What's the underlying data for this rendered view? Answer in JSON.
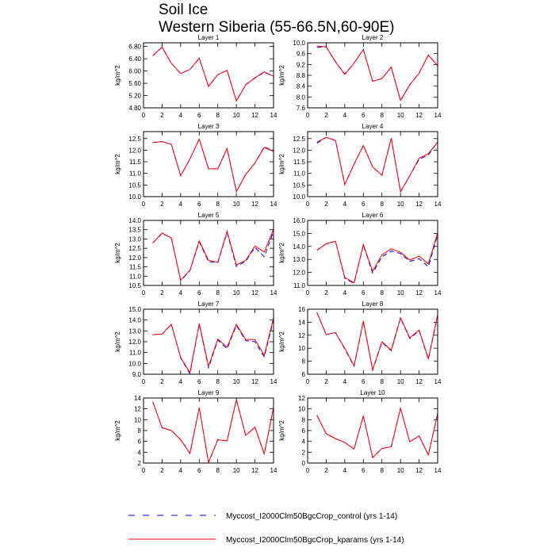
{
  "title": "Soil Ice",
  "subtitle": "Western Siberia (55-66.5N,60-90E)",
  "chart_data": [
    {
      "type": "line",
      "title": "Layer 1",
      "y_label": "kg/m^2",
      "x": [
        1,
        2,
        3,
        4,
        5,
        6,
        7,
        8,
        9,
        10,
        11,
        12,
        13,
        14
      ],
      "xlim": [
        0,
        14
      ],
      "xticks": [
        0,
        2,
        4,
        6,
        8,
        10,
        12,
        14
      ],
      "ylim": [
        4.8,
        6.92
      ],
      "yticks": [
        {
          "value": 4.8,
          "label": "4.80"
        },
        {
          "value": 5.2,
          "label": "5.20"
        },
        {
          "value": 5.6,
          "label": "5.60"
        },
        {
          "value": 6,
          "label": "6.00"
        },
        {
          "value": 6.4,
          "label": "6.40"
        },
        {
          "value": 6.8,
          "label": "6.80"
        }
      ],
      "series": [
        {
          "name": "Myccost_I2000Clm50BgcCrop_control (yrs 1-14)",
          "color": "#0000ff",
          "dashed": true,
          "values": [
            6.5,
            6.77,
            6.25,
            5.92,
            6.05,
            6.41,
            5.5,
            5.88,
            6.02,
            5.03,
            5.55,
            5.77,
            5.96,
            5.83
          ]
        },
        {
          "name": "Myccost_I2000Clm50BgcCrop_kparams (yrs 1-14)",
          "color": "#ff0000",
          "dashed": false,
          "values": [
            6.5,
            6.78,
            6.25,
            5.92,
            6.05,
            6.42,
            5.5,
            5.88,
            6.02,
            5.02,
            5.55,
            5.78,
            5.97,
            5.83
          ]
        }
      ]
    },
    {
      "type": "line",
      "title": "Layer 2",
      "y_label": "kg/m^2",
      "x": [
        1,
        2,
        3,
        4,
        5,
        6,
        7,
        8,
        9,
        10,
        11,
        12,
        13,
        14
      ],
      "xlim": [
        0,
        14
      ],
      "xticks": [
        0,
        2,
        4,
        6,
        8,
        10,
        12,
        14
      ],
      "ylim": [
        7.6,
        10
      ],
      "yticks": [
        7.6,
        {
          "value": 8,
          "label": "8.0"
        },
        8.4,
        8.8,
        9.2,
        9.6,
        {
          "value": 10,
          "label": "10.0"
        }
      ],
      "series": [
        {
          "color": "#0000ff",
          "dashed": true,
          "values": [
            9.83,
            9.85,
            9.3,
            8.85,
            9.25,
            9.75,
            8.58,
            8.68,
            9.1,
            7.87,
            8.45,
            8.88,
            9.55,
            9.15
          ]
        },
        {
          "color": "#ff0000",
          "dashed": false,
          "values": [
            9.88,
            9.85,
            9.3,
            8.83,
            9.25,
            9.75,
            8.58,
            8.68,
            9.1,
            7.87,
            8.45,
            8.88,
            9.55,
            9.15
          ]
        }
      ]
    },
    {
      "type": "line",
      "title": "Layer 3",
      "y_label": "kg/m^2",
      "x": [
        1,
        2,
        3,
        4,
        5,
        6,
        7,
        8,
        9,
        10,
        11,
        12,
        13,
        14
      ],
      "xlim": [
        0,
        14
      ],
      "xticks": [
        0,
        2,
        4,
        6,
        8,
        10,
        12,
        14
      ],
      "ylim": [
        10,
        12.8
      ],
      "yticks": [
        {
          "value": 10,
          "label": "10.0"
        },
        10.5,
        {
          "value": 11,
          "label": "11.0"
        },
        11.5,
        {
          "value": 12,
          "label": "12.0"
        },
        12.5
      ],
      "series": [
        {
          "color": "#0000ff",
          "dashed": true,
          "values": [
            12.33,
            12.37,
            12.25,
            10.9,
            11.62,
            12.48,
            11.2,
            11.2,
            12.07,
            10.22,
            10.95,
            11.45,
            12.15,
            11.95
          ]
        },
        {
          "color": "#ff0000",
          "dashed": false,
          "values": [
            12.33,
            12.37,
            12.25,
            10.9,
            11.62,
            12.48,
            11.2,
            11.2,
            12.07,
            10.22,
            10.95,
            11.45,
            12.12,
            11.95
          ]
        }
      ]
    },
    {
      "type": "line",
      "title": "Layer 4",
      "y_label": "kg/m^2",
      "x": [
        1,
        2,
        3,
        4,
        5,
        6,
        7,
        8,
        9,
        10,
        11,
        12,
        13,
        14
      ],
      "xlim": [
        0,
        14
      ],
      "xticks": [
        0,
        2,
        4,
        6,
        8,
        10,
        12,
        14
      ],
      "ylim": [
        10,
        12.8
      ],
      "yticks": [
        {
          "value": 10,
          "label": "10.0"
        },
        10.5,
        {
          "value": 11,
          "label": "11.0"
        },
        11.5,
        {
          "value": 12,
          "label": "12.0"
        },
        12.5
      ],
      "series": [
        {
          "color": "#0000ff",
          "dashed": true,
          "values": [
            12.3,
            12.55,
            12.42,
            10.52,
            11.4,
            12.2,
            11.28,
            10.92,
            12.52,
            10.2,
            10.9,
            11.6,
            11.8,
            12.35
          ]
        },
        {
          "color": "#ff0000",
          "dashed": false,
          "values": [
            12.35,
            12.55,
            12.42,
            10.52,
            11.4,
            12.2,
            11.28,
            10.92,
            12.52,
            10.22,
            10.9,
            11.65,
            11.85,
            12.35
          ]
        }
      ]
    },
    {
      "type": "line",
      "title": "Layer 5",
      "y_label": "kg/m^2",
      "x": [
        1,
        2,
        3,
        4,
        5,
        6,
        7,
        8,
        9,
        10,
        11,
        12,
        13,
        14
      ],
      "xlim": [
        0,
        14
      ],
      "xticks": [
        0,
        2,
        4,
        6,
        8,
        10,
        12,
        14
      ],
      "ylim": [
        10.5,
        14
      ],
      "yticks": [
        10.5,
        {
          "value": 11,
          "label": "11.0"
        },
        11.5,
        {
          "value": 12,
          "label": "12.0"
        },
        12.5,
        {
          "value": 13,
          "label": "13.0"
        },
        13.5,
        {
          "value": 14,
          "label": "14.0"
        }
      ],
      "series": [
        {
          "color": "#0000ff",
          "dashed": true,
          "values": [
            12.78,
            13.3,
            13.05,
            10.75,
            11.3,
            12.85,
            11.78,
            11.72,
            13.35,
            11.52,
            11.8,
            12.55,
            12.05,
            13.4
          ]
        },
        {
          "color": "#ff0000",
          "dashed": false,
          "values": [
            12.78,
            13.32,
            13.05,
            10.78,
            11.32,
            12.9,
            11.85,
            11.75,
            13.42,
            11.6,
            11.85,
            12.62,
            12.3,
            13.52
          ]
        }
      ]
    },
    {
      "type": "line",
      "title": "Layer 6",
      "y_label": "kg/m^2",
      "x": [
        1,
        2,
        3,
        4,
        5,
        6,
        7,
        8,
        9,
        10,
        11,
        12,
        13,
        14
      ],
      "xlim": [
        0,
        14
      ],
      "xticks": [
        0,
        2,
        4,
        6,
        8,
        10,
        12,
        14
      ],
      "ylim": [
        11,
        16
      ],
      "yticks": [
        {
          "value": 11,
          "label": "11.0"
        },
        {
          "value": 12,
          "label": "12.0"
        },
        {
          "value": 13,
          "label": "13.0"
        },
        {
          "value": 14,
          "label": "14.0"
        },
        {
          "value": 15,
          "label": "15.0"
        },
        {
          "value": 16,
          "label": "16.0"
        }
      ],
      "series": [
        {
          "color": "#0000ff",
          "dashed": true,
          "values": [
            13.7,
            14.2,
            14.4,
            11.55,
            11.15,
            14.1,
            11.95,
            13.2,
            13.65,
            13.45,
            12.85,
            13.05,
            12.45,
            14.9
          ]
        },
        {
          "color": "#ff0000",
          "dashed": false,
          "values": [
            13.7,
            14.2,
            14.4,
            11.62,
            11.2,
            14.15,
            12.1,
            13.35,
            13.82,
            13.55,
            12.95,
            13.25,
            12.65,
            15.05
          ]
        }
      ]
    },
    {
      "type": "line",
      "title": "Layer 7",
      "y_label": "kg/m^2",
      "x": [
        1,
        2,
        3,
        4,
        5,
        6,
        7,
        8,
        9,
        10,
        11,
        12,
        13,
        14
      ],
      "xlim": [
        0,
        14
      ],
      "xticks": [
        0,
        2,
        4,
        6,
        8,
        10,
        12,
        14
      ],
      "ylim": [
        9,
        15
      ],
      "yticks": [
        {
          "value": 9,
          "label": "9.0"
        },
        {
          "value": 10,
          "label": "10.0"
        },
        {
          "value": 11,
          "label": "11.0"
        },
        {
          "value": 12,
          "label": "12.0"
        },
        {
          "value": 13,
          "label": "13.0"
        },
        {
          "value": 14,
          "label": "14.0"
        },
        {
          "value": 15,
          "label": "15.0"
        }
      ],
      "series": [
        {
          "color": "#0000ff",
          "dashed": true,
          "values": [
            12.65,
            12.7,
            13.6,
            10.5,
            9.05,
            13.6,
            9.6,
            12.15,
            11.35,
            13.5,
            12.1,
            12.0,
            10.6,
            14.0
          ]
        },
        {
          "color": "#ff0000",
          "dashed": false,
          "values": [
            12.65,
            12.7,
            13.6,
            10.55,
            9.15,
            13.68,
            9.75,
            12.25,
            11.5,
            13.6,
            12.2,
            12.2,
            10.75,
            14.2
          ]
        }
      ]
    },
    {
      "type": "line",
      "title": "Layer 8",
      "y_label": "kg/m^2",
      "x": [
        1,
        2,
        3,
        4,
        5,
        6,
        7,
        8,
        9,
        10,
        11,
        12,
        13,
        14
      ],
      "xlim": [
        0,
        14
      ],
      "xticks": [
        0,
        2,
        4,
        6,
        8,
        10,
        12,
        14
      ],
      "ylim": [
        6,
        16
      ],
      "yticks": [
        6,
        8,
        10,
        12,
        14,
        16
      ],
      "series": [
        {
          "color": "#0000ff",
          "dashed": true,
          "values": [
            15.5,
            12.1,
            12.4,
            9.9,
            7.2,
            14.1,
            6.6,
            10.9,
            9.6,
            14.6,
            11.5,
            12.7,
            8.3,
            15.0
          ]
        },
        {
          "color": "#ff0000",
          "dashed": false,
          "values": [
            15.5,
            12.1,
            12.4,
            10.0,
            7.3,
            14.2,
            6.7,
            11.0,
            9.7,
            14.7,
            11.6,
            12.8,
            8.4,
            15.2
          ]
        }
      ]
    },
    {
      "type": "line",
      "title": "Layer 9",
      "y_label": "kg/m^2",
      "x": [
        1,
        2,
        3,
        4,
        5,
        6,
        7,
        8,
        9,
        10,
        11,
        12,
        13,
        14
      ],
      "xlim": [
        0,
        14
      ],
      "xticks": [
        0,
        2,
        4,
        6,
        8,
        10,
        12,
        14
      ],
      "ylim": [
        2,
        14
      ],
      "yticks": [
        2,
        4,
        6,
        8,
        10,
        12,
        14
      ],
      "series": [
        {
          "color": "#0000ff",
          "dashed": true,
          "values": [
            13.3,
            8.5,
            8.0,
            6.3,
            3.8,
            12.2,
            2.1,
            6.3,
            6.1,
            13.7,
            7.1,
            8.6,
            3.7,
            12.2
          ]
        },
        {
          "color": "#ff0000",
          "dashed": false,
          "values": [
            13.3,
            8.5,
            8.0,
            6.3,
            3.8,
            12.2,
            2.1,
            6.3,
            6.1,
            13.7,
            7.1,
            8.6,
            3.7,
            12.3
          ]
        }
      ]
    },
    {
      "type": "line",
      "title": "Layer 10",
      "y_label": "kg/m^2",
      "x": [
        1,
        2,
        3,
        4,
        5,
        6,
        7,
        8,
        9,
        10,
        11,
        12,
        13,
        14
      ],
      "xlim": [
        0,
        14
      ],
      "xticks": [
        0,
        2,
        4,
        6,
        8,
        10,
        12,
        14
      ],
      "ylim": [
        0,
        12
      ],
      "yticks": [
        0,
        2,
        4,
        6,
        8,
        10,
        12
      ],
      "series": [
        {
          "color": "#0000ff",
          "dashed": true,
          "values": [
            8.8,
            5.4,
            4.5,
            3.8,
            2.6,
            8.7,
            1.0,
            2.7,
            3.0,
            10.1,
            3.9,
            5.0,
            1.5,
            9.1
          ]
        },
        {
          "color": "#ff0000",
          "dashed": false,
          "values": [
            8.8,
            5.4,
            4.5,
            3.8,
            2.6,
            8.7,
            1.0,
            2.7,
            3.0,
            10.1,
            3.9,
            5.0,
            1.5,
            9.2
          ]
        }
      ]
    }
  ]
}
